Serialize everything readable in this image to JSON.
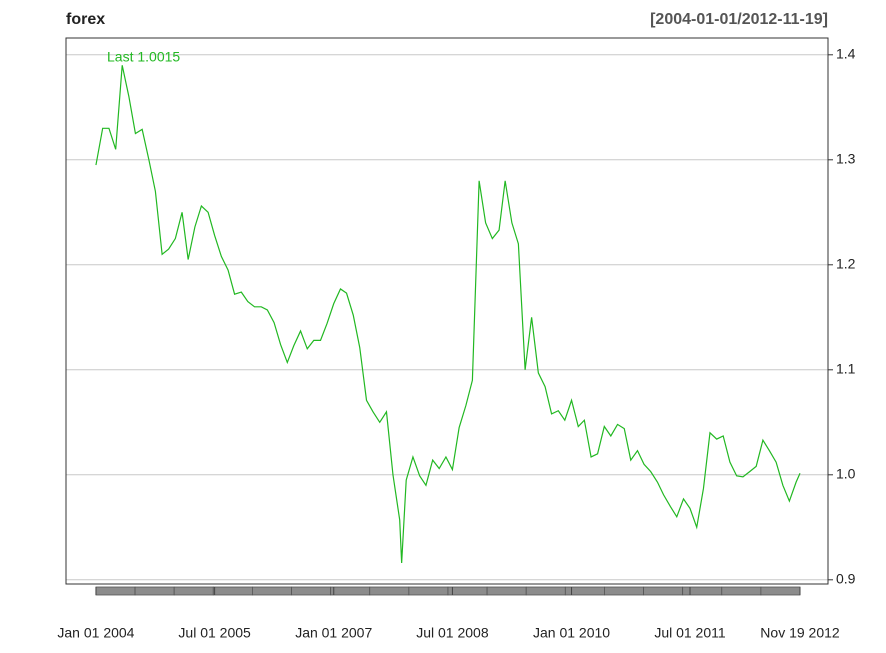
{
  "chart_data": {
    "type": "line",
    "title": "forex",
    "subtitle": "[2004-01-01/2012-11-19]",
    "annotation": "Last 1.0015",
    "x": [
      "2004-01-01",
      "2004-02-01",
      "2004-03-01",
      "2004-04-01",
      "2004-05-01",
      "2004-06-01",
      "2004-07-01",
      "2004-08-01",
      "2004-09-01",
      "2004-10-01",
      "2004-11-01",
      "2004-12-01",
      "2005-01-01",
      "2005-02-01",
      "2005-03-01",
      "2005-04-01",
      "2005-05-01",
      "2005-06-01",
      "2005-07-01",
      "2005-08-01",
      "2005-09-01",
      "2005-10-01",
      "2005-11-01",
      "2005-12-01",
      "2006-01-01",
      "2006-02-01",
      "2006-03-01",
      "2006-04-01",
      "2006-05-01",
      "2006-06-01",
      "2006-07-01",
      "2006-08-01",
      "2006-09-01",
      "2006-10-01",
      "2006-11-01",
      "2006-12-01",
      "2007-01-01",
      "2007-02-01",
      "2007-03-01",
      "2007-04-01",
      "2007-05-01",
      "2007-06-01",
      "2007-07-01",
      "2007-08-01",
      "2007-09-01",
      "2007-10-01",
      "2007-11-01",
      "2007-11-10",
      "2007-12-01",
      "2008-01-01",
      "2008-02-01",
      "2008-03-01",
      "2008-04-01",
      "2008-05-01",
      "2008-06-01",
      "2008-07-01",
      "2008-08-01",
      "2008-09-01",
      "2008-10-01",
      "2008-11-01",
      "2008-12-01",
      "2009-01-01",
      "2009-02-01",
      "2009-03-01",
      "2009-04-01",
      "2009-05-01",
      "2009-06-01",
      "2009-07-01",
      "2009-08-01",
      "2009-09-01",
      "2009-10-01",
      "2009-11-01",
      "2009-12-01",
      "2010-01-01",
      "2010-02-01",
      "2010-03-01",
      "2010-04-01",
      "2010-05-01",
      "2010-06-01",
      "2010-07-01",
      "2010-08-01",
      "2010-09-01",
      "2010-10-01",
      "2010-11-01",
      "2010-12-01",
      "2011-01-01",
      "2011-02-01",
      "2011-03-01",
      "2011-04-01",
      "2011-05-01",
      "2011-06-01",
      "2011-07-01",
      "2011-08-01",
      "2011-09-01",
      "2011-10-01",
      "2011-11-01",
      "2011-12-01",
      "2012-01-01",
      "2012-02-01",
      "2012-03-01",
      "2012-04-01",
      "2012-05-01",
      "2012-06-01",
      "2012-07-01",
      "2012-08-01",
      "2012-09-01",
      "2012-10-01",
      "2012-11-01",
      "2012-11-19"
    ],
    "series": [
      {
        "name": "forex",
        "color": "#22b822",
        "values": [
          1.295,
          1.33,
          1.33,
          1.31,
          1.39,
          1.36,
          1.325,
          1.329,
          1.3,
          1.27,
          1.21,
          1.215,
          1.225,
          1.25,
          1.205,
          1.236,
          1.256,
          1.25,
          1.228,
          1.208,
          1.195,
          1.172,
          1.174,
          1.165,
          1.16,
          1.16,
          1.157,
          1.145,
          1.124,
          1.107,
          1.123,
          1.137,
          1.12,
          1.128,
          1.128,
          1.144,
          1.163,
          1.177,
          1.173,
          1.152,
          1.121,
          1.071,
          1.06,
          1.05,
          1.06,
          1.0,
          0.957,
          0.916,
          0.995,
          1.017,
          0.999,
          0.99,
          1.014,
          1.006,
          1.017,
          1.005,
          1.045,
          1.066,
          1.09,
          1.28,
          1.24,
          1.225,
          1.233,
          1.28,
          1.24,
          1.22,
          1.1,
          1.15,
          1.097,
          1.084,
          1.058,
          1.061,
          1.052,
          1.071,
          1.046,
          1.052,
          1.017,
          1.02,
          1.046,
          1.037,
          1.048,
          1.044,
          1.014,
          1.023,
          1.01,
          1.003,
          0.993,
          0.981,
          0.97,
          0.96,
          0.977,
          0.968,
          0.95,
          0.987,
          1.04,
          1.034,
          1.037,
          1.012,
          0.999,
          0.998,
          1.003,
          1.008,
          1.033,
          1.023,
          1.012,
          0.99,
          0.975,
          0.993,
          1.0015
        ]
      }
    ],
    "xlim": [
      "2003-08-16",
      "2013-03-28"
    ],
    "xticks": [
      {
        "value": "2004-01-01",
        "label": "Jan 01 2004"
      },
      {
        "value": "2005-07-01",
        "label": "Jul 01 2005"
      },
      {
        "value": "2007-01-01",
        "label": "Jan 01 2007"
      },
      {
        "value": "2008-07-01",
        "label": "Jul 01 2008"
      },
      {
        "value": "2010-01-01",
        "label": "Jan 01 2010"
      },
      {
        "value": "2011-07-01",
        "label": "Jul 01 2011"
      },
      {
        "value": "2012-11-19",
        "label": "Nov 19 2012"
      }
    ],
    "ylim": [
      0.896,
      1.416
    ],
    "yticks": [
      0.9,
      {
        "value": 1,
        "label": "1.0"
      },
      1.1,
      1.2,
      1.3,
      1.4
    ],
    "grid": true
  }
}
